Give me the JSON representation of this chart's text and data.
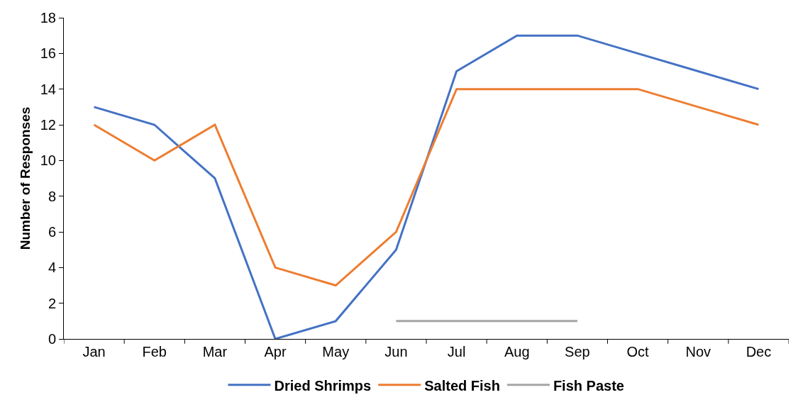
{
  "chart_data": {
    "type": "line",
    "ylabel": "Number of Responses",
    "categories": [
      "Jan",
      "Feb",
      "Mar",
      "Apr",
      "May",
      "Jun",
      "Jul",
      "Aug",
      "Sep",
      "Oct",
      "Nov",
      "Dec"
    ],
    "series": [
      {
        "name": "Dried Shrimps",
        "color": "#4472c4",
        "values": [
          13,
          12,
          9,
          0,
          1,
          5,
          15,
          17,
          17,
          16,
          15,
          14
        ]
      },
      {
        "name": "Salted Fish",
        "color": "#ed7d31",
        "values": [
          12,
          10,
          12,
          4,
          3,
          6,
          14,
          14,
          14,
          14,
          13,
          12
        ]
      },
      {
        "name": "Fish Paste",
        "color": "#a5a5a5",
        "values": [
          null,
          null,
          null,
          null,
          null,
          1,
          1,
          1,
          1,
          null,
          null,
          null
        ]
      }
    ],
    "ylim": [
      0,
      18
    ],
    "yticks": [
      0,
      2,
      4,
      6,
      8,
      10,
      12,
      14,
      16,
      18
    ],
    "grid": false,
    "legend": "bottom",
    "marker": "none",
    "line_style": "solid"
  }
}
